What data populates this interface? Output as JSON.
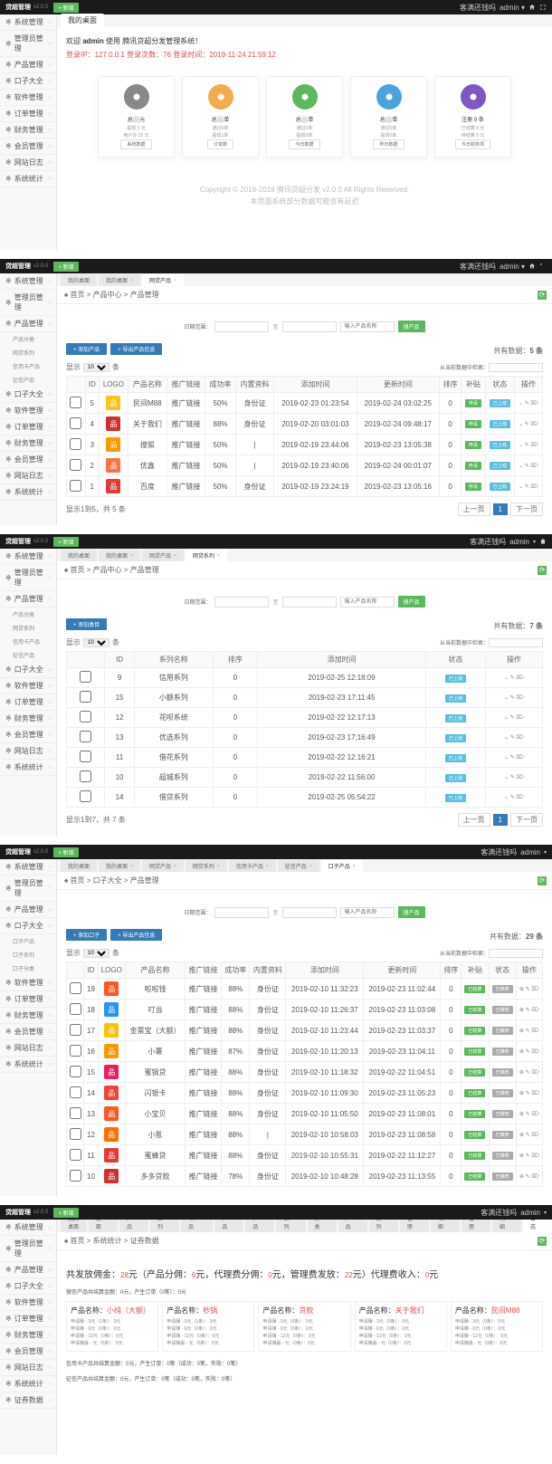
{
  "app": {
    "name": "贷超管理",
    "version": "v2.0.0",
    "addBtn": "+ 新增",
    "rightText": "客满还钱吗",
    "user": "admin"
  },
  "sidebar": {
    "main": [
      "系统管理",
      "管理员管理",
      "产品管理",
      "口子大全",
      "软件管理",
      "订单管理",
      "财务管理",
      "会员管理",
      "网站日志",
      "系统统计"
    ],
    "prodSubs": [
      "产品分类",
      "网贷系列",
      "信用卡产品",
      "征信产品"
    ],
    "kouziSubs": [
      "口子产品",
      "口子系列",
      "口子分类"
    ],
    "finSubs": [
      "系统管理",
      "管理员管理",
      "产品管理",
      "口子大全",
      "软件管理",
      "订单管理",
      "财务管理",
      "会员管理",
      "网站日志",
      "系统统计",
      "证券数据"
    ]
  },
  "dash": {
    "tab": "我的桌面",
    "welcome_pre": "欢迎 ",
    "welcome_user": "admin",
    "welcome_post": " 使用  腾讯贷超分发管理系统！",
    "ip_lbl": "登录IP：",
    "ip": "127.0.0.1",
    "cnt_lbl": " 登录次数：",
    "cnt": "76",
    "time_lbl": " 登录时间：",
    "time": "2019-11-24 21:59:12",
    "cards": [
      {
        "color": "#888888",
        "title": "总⬜元",
        "line1": "提现 0 元",
        "line2": "用户办 22 元",
        "btn": "系统数据"
      },
      {
        "color": "#f0ad4e",
        "title": "总⬜单",
        "line1": "通过0单",
        "line2": "提现1单",
        "btn": "订单数"
      },
      {
        "color": "#5cb85c",
        "title": "总⬜单",
        "line1": "通过0单",
        "line2": "提现0单",
        "btn": "今日数据"
      },
      {
        "color": "#4aa3df",
        "title": "总⬜单",
        "line1": "通过0单",
        "line2": "提现0单",
        "btn": "昨日数据"
      },
      {
        "color": "#7e57c2",
        "title": "注册 0 条",
        "line1": "已结算 0 元",
        "line2": "待结算 0 元",
        "btn": "今日财务项"
      }
    ],
    "cp1": "Copyright © 2018-2019 腾讯贷超分发 v2.0.0 All Rights Reserved.",
    "cp2": "本页面系统部分数据可能含有延迟"
  },
  "s2": {
    "tabs": [
      "我的桌面",
      "我的桌面",
      "网贷产品"
    ],
    "crumb": "♠ 首页 > 产品中心 > 产品管理",
    "searchBtn": "搜产品",
    "dateLbl": "日期范围：",
    "placeholder": "输入产品名称",
    "total": "共有数据：",
    "totalN": "5 条",
    "btns": [
      "+ 添加产品",
      "+ 导出产品信息"
    ],
    "pageSize": "显示",
    "pageSizeN": "10",
    "pageSizeUnit": "条",
    "fromTip": "从当前数据中检索：",
    "cols": [
      "",
      "ID",
      "LOGO",
      "产品名称",
      "推广链接",
      "成功率",
      "内置资料",
      "添加时间",
      "更新时间",
      "排序",
      "补贴",
      "状态",
      "操作"
    ],
    "rows": [
      {
        "id": "5",
        "logo": "#f5c518",
        "name": "民间M88",
        "link": "推广链接",
        "rate": "50%",
        "cert": "身份证",
        "t1": "2019-02-23 01:23:54",
        "t2": "2019-02-24 03:02:25",
        "sort": "0",
        "ck": "申请",
        "st": "已上线"
      },
      {
        "id": "4",
        "logo": "#d32f2f",
        "name": "关于我们",
        "link": "推广链接",
        "rate": "88%",
        "cert": "身份证",
        "t1": "2019-02-20 03:01:03",
        "t2": "2019-02-24 09:48:17",
        "sort": "0",
        "ck": "申请",
        "st": "已上线"
      },
      {
        "id": "3",
        "logo": "#ff9800",
        "name": "搜狐",
        "link": "推广链接",
        "rate": "50%",
        "cert": "|",
        "t1": "2019-02-19 23:44:06",
        "t2": "2019-02-23 13:05:38",
        "sort": "0",
        "ck": "申请",
        "st": "已上线"
      },
      {
        "id": "2",
        "logo": "#ff7043",
        "name": "优鑫",
        "link": "推广链接",
        "rate": "50%",
        "cert": "|",
        "t1": "2019-02-19 23:40:06",
        "t2": "2019-02-24 00:01:07",
        "sort": "0",
        "ck": "申请",
        "st": "已上线"
      },
      {
        "id": "1",
        "logo": "#e53935",
        "name": "百度",
        "link": "推广链接",
        "rate": "50%",
        "cert": "身份证",
        "t1": "2019-02-19 23:24:19",
        "t2": "2019-02-23 13:05:16",
        "sort": "0",
        "ck": "申请",
        "st": "已上线"
      }
    ],
    "pageInfo": "显示1到5，共 5 条",
    "prev": "上一页",
    "next": "下一页"
  },
  "s3": {
    "tabs": [
      "我的桌面",
      "我的桌面",
      "网贷产品",
      "网贷系列"
    ],
    "crumb": "♠ 首页 > 产品中心 > 产品管理",
    "total": "共有数据：",
    "totalN": "7 条",
    "btn": "+ 添加类目",
    "cols": [
      "",
      "ID",
      "系列名称",
      "排序",
      "添加时间",
      "状态",
      "操作"
    ],
    "rows": [
      {
        "id": "9",
        "name": "信用系列",
        "sort": "0",
        "t": "2019-02-25 12:18:09"
      },
      {
        "id": "15",
        "name": "小额系列",
        "sort": "0",
        "t": "2019-02-23 17:11:45"
      },
      {
        "id": "12",
        "name": "花呗系统",
        "sort": "0",
        "t": "2019-02-22 12:17:13"
      },
      {
        "id": "13",
        "name": "优选系列",
        "sort": "0",
        "t": "2019-02-23 17:16:49"
      },
      {
        "id": "11",
        "name": "借花系列",
        "sort": "0",
        "t": "2019-02-22 12:16:21"
      },
      {
        "id": "10",
        "name": "超城系列",
        "sort": "0",
        "t": "2019-02-22 11:56:00"
      },
      {
        "id": "14",
        "name": "借贷系列",
        "sort": "0",
        "t": "2019-02-25 05:54:22"
      }
    ],
    "pageInfo": "显示1到7，共 7 条"
  },
  "s4": {
    "tabs": [
      "我的桌面",
      "我的桌面",
      "网贷产品",
      "网贷系列",
      "信用卡产品",
      "征信产品",
      "口子产品"
    ],
    "crumb": "♠ 首页 > 口子大全 > 产品管理",
    "total": "共有数据：",
    "totalN": "29 条",
    "btns": [
      "+ 添加口子",
      "+ 导出产品信息"
    ],
    "cols": [
      "",
      "ID",
      "LOGO",
      "产品名称",
      "推广链接",
      "成功率",
      "内置资料",
      "添加时间",
      "更新时间",
      "排序",
      "补贴",
      "状态",
      "操作"
    ],
    "rows": [
      {
        "id": "19",
        "logo": "#ff5722",
        "name": "啦啦钱",
        "link": "推广链接",
        "rate": "88%",
        "cert": "身份证",
        "t1": "2019-02-10 11:32:23",
        "t2": "2019-02-23 11:02:44",
        "sort": "0"
      },
      {
        "id": "18",
        "logo": "#2196f3",
        "name": "叮当",
        "link": "推广链接",
        "rate": "88%",
        "cert": "身份证",
        "t1": "2019-02-10 11:26:37",
        "t2": "2019-02-23 11:03:08",
        "sort": "0"
      },
      {
        "id": "17",
        "logo": "#ffc107",
        "name": "金票宝（大额）",
        "link": "推广链接",
        "rate": "88%",
        "cert": "身份证",
        "t1": "2019-02-10 11:23:44",
        "t2": "2019-02-23 11:03:37",
        "sort": "0"
      },
      {
        "id": "16",
        "logo": "#ff9800",
        "name": "小薯",
        "link": "推广链接",
        "rate": "87%",
        "cert": "身份证",
        "t1": "2019-02-10 11:20:13",
        "t2": "2019-02-23 11:04:11",
        "sort": "0"
      },
      {
        "id": "15",
        "logo": "#e91e63",
        "name": "蜜锅贷",
        "link": "推广链接",
        "rate": "88%",
        "cert": "身份证",
        "t1": "2019-02-10 11:18:32",
        "t2": "2019-02-22 11:04:51",
        "sort": "0"
      },
      {
        "id": "14",
        "logo": "#f44336",
        "name": "闪银卡",
        "link": "推广链接",
        "rate": "88%",
        "cert": "身份证",
        "t1": "2019-02-10 11:09:30",
        "t2": "2019-02-23 11:05:23",
        "sort": "0"
      },
      {
        "id": "13",
        "logo": "#ff5722",
        "name": "小宝贝",
        "link": "推广链接",
        "rate": "88%",
        "cert": "身份证",
        "t1": "2019-02-10 11:05:50",
        "t2": "2019-02-23 11:08:01",
        "sort": "0"
      },
      {
        "id": "12",
        "logo": "#ff6f00",
        "name": "小氪",
        "link": "推广链接",
        "rate": "88%",
        "cert": "|",
        "t1": "2019-02-10 10:58:03",
        "t2": "2019-02-23 11:08:58",
        "sort": "0"
      },
      {
        "id": "11",
        "logo": "#e53935",
        "name": "蜜蜂贷",
        "link": "推广链接",
        "rate": "88%",
        "cert": "身份证",
        "t1": "2019-02-10 10:55:31",
        "t2": "2019-02-22 11:12:27",
        "sort": "0"
      },
      {
        "id": "10",
        "logo": "#d32f2f",
        "name": "多多贷款",
        "link": "推广链接",
        "rate": "78%",
        "cert": "身份证",
        "t1": "2019-02-10 10:48:28",
        "t2": "2019-02-23 11:13:55",
        "sort": "0"
      }
    ]
  },
  "s5": {
    "tabs": [
      "我的桌面",
      "我的桌面",
      "网贷产品",
      "网贷系列",
      "信用卡产品",
      "征信产品",
      "口子产品",
      "口子系列",
      "口子分类",
      "软件产品",
      "软件系列",
      "订单管理",
      "财务明细",
      "会员管理",
      "会员明细",
      "系统日志"
    ],
    "crumb": "♠ 首页 > 系统统计 > 证券数据",
    "title_parts": [
      "共发放佣金：",
      "28",
      "元（产品分佣：",
      "6",
      "元，代理费分佣：",
      "0",
      "元，管理费发放：",
      "22",
      "元）代理费收入：",
      "0",
      "元"
    ],
    "line1": "微信产品共结算金额：0元，产生订单（0笔）：0元",
    "boxes": [
      {
        "h": "产品名称：",
        "hn": "小纯（大额）",
        "r": [
          "申请赚 - 3元（1条）：3元",
          "申请赚 - 6元（0条）：0元",
          "申请赚 - 12元（0条）：0元",
          "申请赚最 - 元（0条）：0元"
        ]
      },
      {
        "h": "产品名称：",
        "hn": "秒锅",
        "r": [
          "申请赚 - 3元（1条）：3元",
          "申请赚 - 6元（0条）：0元",
          "申请赚 - 12元（0条）：0元",
          "申请赚最 - 元（0条）：0元"
        ]
      },
      {
        "h": "产品名称：",
        "hn": "贷款",
        "r": [
          "申请赚 - 3元（0条）：0元",
          "申请赚 - 6元（0条）：0元",
          "申请赚 - 12元（0条）：0元",
          "申请赚最 - 元（0条）：0元"
        ]
      },
      {
        "h": "产品名称：",
        "hn": "关于我们",
        "r": [
          "申请赚 - 3元（0条）：0元",
          "申请赚 - 6元（0条）：0元",
          "申请赚 - 12元（0条）：0元",
          "申请赚最 - 元（0条）：0元"
        ]
      },
      {
        "h": "产品名称：",
        "hn": "民间M88",
        "r": [
          "申请赚 - 3元（0条）：0元",
          "申请赚 - 6元（0条）：0元",
          "申请赚 - 12元（0条）：0元",
          "申请赚最 - 元（0条）：0元"
        ]
      }
    ],
    "line2": "信用卡产品共结算金额：0元，产生订单：0笔（成功：0笔，失败：0笔）",
    "line3": "征信产品共结算金额：0元，产生订单：0笔（成功：0笔，失败：0笔）"
  }
}
